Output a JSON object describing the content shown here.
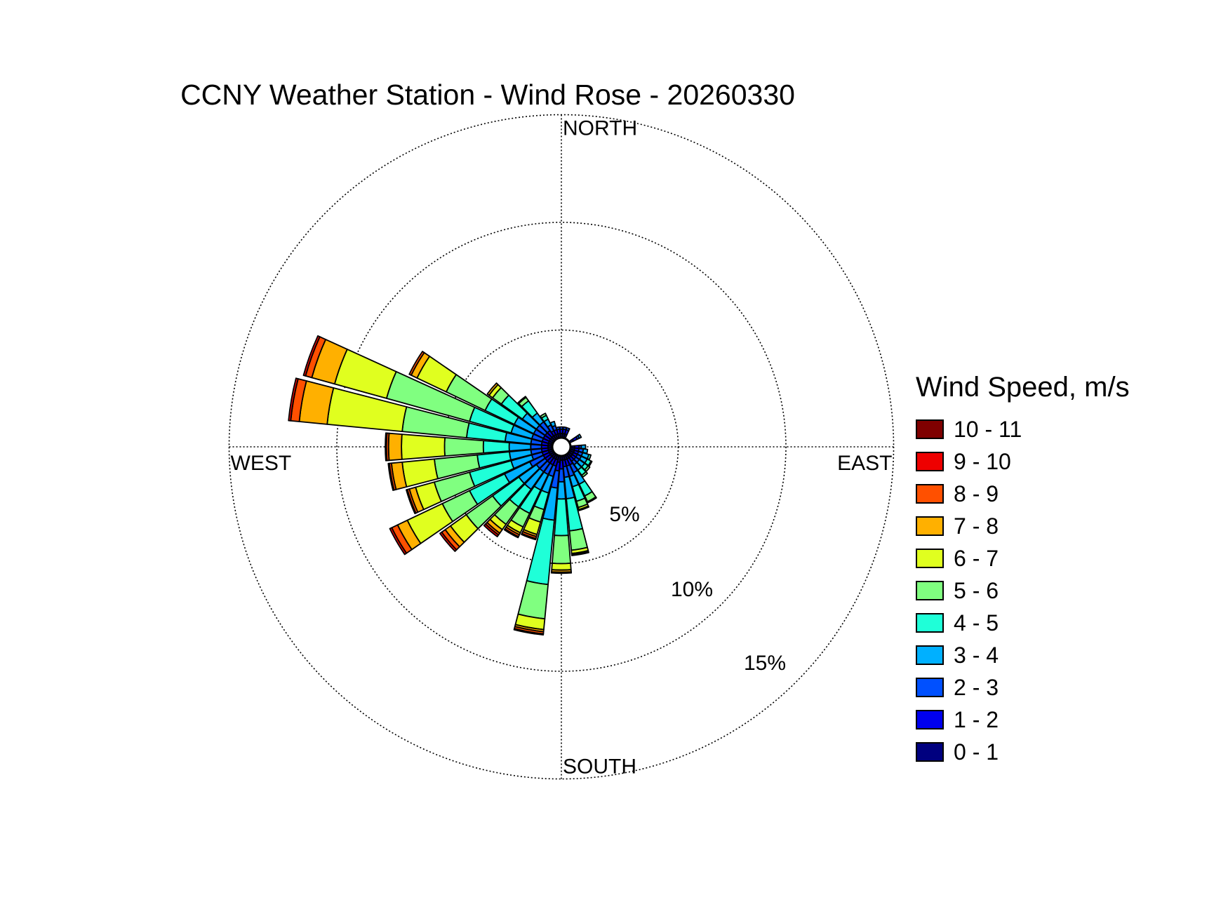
{
  "chart_data": {
    "type": "wind-rose",
    "title": "CCNY Weather Station - Wind Rose - 20260330",
    "legend_title": "Wind Speed, m/s",
    "legend_position": "right",
    "directions": {
      "north": "NORTH",
      "south": "SOUTH",
      "east": "EAST",
      "west": "WEST"
    },
    "ring_labels": [
      "5%",
      "10%",
      "15%"
    ],
    "ring_values": [
      5,
      10,
      15
    ],
    "grid": true,
    "speed_bins": [
      {
        "label": "0 - 1",
        "color": "#00007f"
      },
      {
        "label": "1 - 2",
        "color": "#0000ee"
      },
      {
        "label": "2 - 3",
        "color": "#0050ff"
      },
      {
        "label": "3 - 4",
        "color": "#00b0ff"
      },
      {
        "label": "4 - 5",
        "color": "#1fffd8"
      },
      {
        "label": "5 - 6",
        "color": "#80ff80"
      },
      {
        "label": "6 - 7",
        "color": "#e0ff1f"
      },
      {
        "label": "7 - 8",
        "color": "#ffb000"
      },
      {
        "label": "8 - 9",
        "color": "#ff5000"
      },
      {
        "label": "9 - 10",
        "color": "#ee0000"
      },
      {
        "label": "10 - 11",
        "color": "#7f0000"
      }
    ],
    "sectors": [
      {
        "direction_deg": 0,
        "cumulative_percent": [
          0.2,
          0.4,
          0.5
        ]
      },
      {
        "direction_deg": 10,
        "cumulative_percent": [
          0.2,
          0.4,
          0.5
        ]
      },
      {
        "direction_deg": 20,
        "cumulative_percent": [
          0.2,
          0.4,
          0.5
        ]
      },
      {
        "direction_deg": 60,
        "cumulative_percent": [
          0.2,
          0.4,
          0.5,
          0.6
        ]
      },
      {
        "direction_deg": 90,
        "cumulative_percent": [
          0.2,
          0.4,
          0.5,
          0.7
        ]
      },
      {
        "direction_deg": 100,
        "cumulative_percent": [
          0.2,
          0.4,
          0.6,
          0.8
        ]
      },
      {
        "direction_deg": 110,
        "cumulative_percent": [
          0.2,
          0.4,
          0.6,
          0.9,
          1.0
        ]
      },
      {
        "direction_deg": 120,
        "cumulative_percent": [
          0.2,
          0.4,
          0.6,
          0.9,
          1.1,
          1.15
        ]
      },
      {
        "direction_deg": 130,
        "cumulative_percent": [
          0.2,
          0.4,
          0.6,
          0.9,
          1.1,
          1.2
        ]
      },
      {
        "direction_deg": 140,
        "cumulative_percent": [
          0.2,
          0.4,
          0.6,
          0.9,
          1.2,
          1.3
        ]
      },
      {
        "direction_deg": 150,
        "cumulative_percent": [
          0.2,
          0.5,
          0.9,
          1.5,
          2.1,
          2.4,
          2.45
        ]
      },
      {
        "direction_deg": 160,
        "cumulative_percent": [
          0.2,
          0.5,
          1.0,
          1.5,
          2.2,
          2.5,
          2.6,
          2.65
        ]
      },
      {
        "direction_deg": 170,
        "cumulative_percent": [
          0.2,
          0.5,
          1.0,
          2.0,
          3.5,
          4.4,
          4.55,
          4.6,
          4.65
        ]
      },
      {
        "direction_deg": 180,
        "cumulative_percent": [
          0.2,
          0.6,
          1.2,
          2.0,
          3.7,
          5.0,
          5.3,
          5.4,
          5.45
        ]
      },
      {
        "direction_deg": 190,
        "cumulative_percent": [
          0.3,
          0.7,
          1.5,
          3.0,
          6.0,
          7.6,
          8.1,
          8.2,
          8.3,
          8.35
        ]
      },
      {
        "direction_deg": 200,
        "cumulative_percent": [
          0.2,
          0.5,
          1.0,
          1.8,
          2.6,
          3.2,
          3.8,
          3.9,
          4.0,
          4.05
        ]
      },
      {
        "direction_deg": 210,
        "cumulative_percent": [
          0.2,
          0.5,
          1.0,
          1.8,
          3.0,
          3.7,
          4.0,
          4.1,
          4.2,
          4.25
        ]
      },
      {
        "direction_deg": 220,
        "cumulative_percent": [
          0.2,
          0.5,
          1.0,
          2.0,
          3.0,
          4.0,
          4.3,
          4.5,
          4.6,
          4.7
        ]
      },
      {
        "direction_deg": 230,
        "cumulative_percent": [
          0.2,
          0.5,
          1.0,
          2.0,
          3.5,
          5.0,
          5.9,
          6.2,
          6.4,
          6.5
        ]
      },
      {
        "direction_deg": 240,
        "cumulative_percent": [
          0.2,
          0.5,
          1.2,
          2.5,
          4.3,
          5.7,
          7.5,
          8.0,
          8.3,
          8.4
        ]
      },
      {
        "direction_deg": 250,
        "cumulative_percent": [
          0.2,
          0.5,
          1.0,
          2.0,
          4.0,
          5.7,
          6.6,
          6.9,
          7.0,
          7.05
        ]
      },
      {
        "direction_deg": 260,
        "cumulative_percent": [
          0.2,
          0.5,
          1.0,
          2.0,
          3.5,
          5.5,
          7.0,
          7.5,
          7.6,
          7.65
        ]
      },
      {
        "direction_deg": 270,
        "cumulative_percent": [
          0.2,
          0.5,
          1.0,
          2.0,
          3.2,
          5.0,
          7.0,
          7.6,
          7.7,
          7.75
        ]
      },
      {
        "direction_deg": 280,
        "cumulative_percent": [
          0.2,
          0.5,
          1.0,
          2.2,
          4.0,
          7.0,
          10.5,
          11.8,
          12.2,
          12.3
        ]
      },
      {
        "direction_deg": 290,
        "cumulative_percent": [
          0.2,
          0.5,
          1.0,
          2.0,
          4.0,
          8.0,
          10.5,
          11.6,
          11.9,
          12.0
        ]
      },
      {
        "direction_deg": 300,
        "cumulative_percent": [
          0.2,
          0.5,
          1.0,
          2.0,
          3.5,
          5.5,
          7.0,
          7.3,
          7.4
        ]
      },
      {
        "direction_deg": 310,
        "cumulative_percent": [
          0.2,
          0.5,
          1.0,
          1.8,
          3.0,
          3.5,
          3.7,
          3.8
        ]
      },
      {
        "direction_deg": 320,
        "cumulative_percent": [
          0.2,
          0.5,
          1.0,
          1.5,
          2.2,
          2.4,
          2.45
        ]
      },
      {
        "direction_deg": 330,
        "cumulative_percent": [
          0.2,
          0.4,
          0.7,
          1.0,
          1.2,
          1.3
        ]
      },
      {
        "direction_deg": 340,
        "cumulative_percent": [
          0.2,
          0.4,
          0.6,
          0.8
        ]
      },
      {
        "direction_deg": 350,
        "cumulative_percent": [
          0.2,
          0.4,
          0.5
        ]
      }
    ]
  }
}
